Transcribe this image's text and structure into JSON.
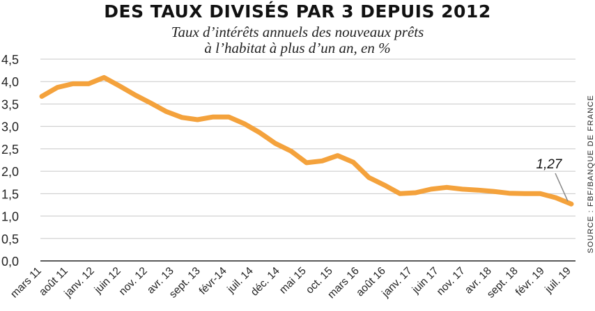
{
  "chart_data": {
    "type": "line",
    "title": "DES TAUX DIVISÉS PAR 3 DEPUIS 2012",
    "subtitle": [
      "Taux d’intérêts annuels des nouveaux prêts",
      "à l’habitat à plus d’un an, en %"
    ],
    "source": "SOURCE : FBF/BANQUE DE FRANCE",
    "xlabel": "",
    "ylabel": "",
    "ylim": [
      0,
      4.5
    ],
    "yticks": [
      "0,0",
      "0,5",
      "1,0",
      "1,5",
      "2,0",
      "2,5",
      "3,0",
      "3,5",
      "4,0",
      "4,5"
    ],
    "grid": true,
    "legend": "none",
    "color": "#F4A23C",
    "x_tick_labels": [
      "mars 11",
      "août 11",
      "janv. 12",
      "juin 12",
      "nov. 12",
      "avr. 13",
      "sept. 13",
      "févr-14",
      "juil. 14",
      "déc. 14",
      "mai 15",
      "oct. 15",
      "mars 16",
      "août 16",
      "janv. 17",
      "juin 17",
      "nov. 17",
      "avr. 18",
      "sept. 18",
      "févr. 19",
      "juil. 19"
    ],
    "values": [
      3.67,
      3.87,
      3.95,
      3.95,
      4.09,
      3.9,
      3.7,
      3.52,
      3.33,
      3.2,
      3.15,
      3.21,
      3.21,
      3.06,
      2.86,
      2.62,
      2.45,
      2.19,
      2.23,
      2.35,
      2.2,
      1.86,
      1.69,
      1.5,
      1.52,
      1.6,
      1.64,
      1.6,
      1.58,
      1.55,
      1.51,
      1.5,
      1.5,
      1.41,
      1.27
    ],
    "annotation": {
      "text": "1,27"
    }
  }
}
